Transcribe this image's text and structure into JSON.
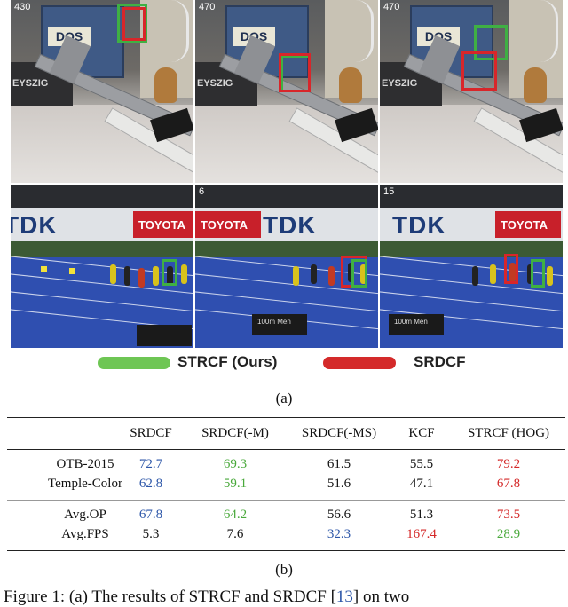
{
  "figure_a": {
    "frame_numbers": [
      "430",
      "470",
      "470"
    ],
    "top_row_text": {
      "book_label": "DOS",
      "tape_label": "EYSZIG"
    },
    "bottom_row_text": {
      "sponsor": "TDK",
      "ad": "TOYOTA",
      "board": "100m Men"
    },
    "frame_numbers_bottom": [
      "",
      "6",
      "15"
    ]
  },
  "legend": {
    "items": [
      {
        "label": "STRCF (Ours)",
        "color": "#6ec654"
      },
      {
        "label": "SRDCF",
        "color": "#d42a2a"
      }
    ]
  },
  "captions": {
    "a": "(a)",
    "b": "(b)"
  },
  "table": {
    "columns": [
      "SRDCF",
      "SRDCF(-M)",
      "SRDCF(-MS)",
      "KCF",
      "STRCF (HOG)"
    ],
    "rows": [
      {
        "label": "OTB-2015",
        "values": [
          "72.7",
          "69.3",
          "61.5",
          "55.5",
          "79.2"
        ],
        "colors": [
          "blue",
          "green",
          "black",
          "black",
          "red"
        ]
      },
      {
        "label": "Temple-Color",
        "values": [
          "62.8",
          "59.1",
          "51.6",
          "47.1",
          "67.8"
        ],
        "colors": [
          "blue",
          "green",
          "black",
          "black",
          "red"
        ]
      },
      {
        "label": "Avg.OP",
        "values": [
          "67.8",
          "64.2",
          "56.6",
          "51.3",
          "73.5"
        ],
        "colors": [
          "blue",
          "green",
          "black",
          "black",
          "red"
        ]
      },
      {
        "label": "Avg.FPS",
        "values": [
          "5.3",
          "7.6",
          "32.3",
          "167.4",
          "28.9"
        ],
        "colors": [
          "black",
          "black",
          "blue",
          "red",
          "green"
        ]
      }
    ]
  },
  "figure_caption": {
    "prefix": "Figure 1:",
    "text": " (a) The results of STRCF and SRDCF [",
    "ref": "13",
    "suffix": "] on two"
  }
}
